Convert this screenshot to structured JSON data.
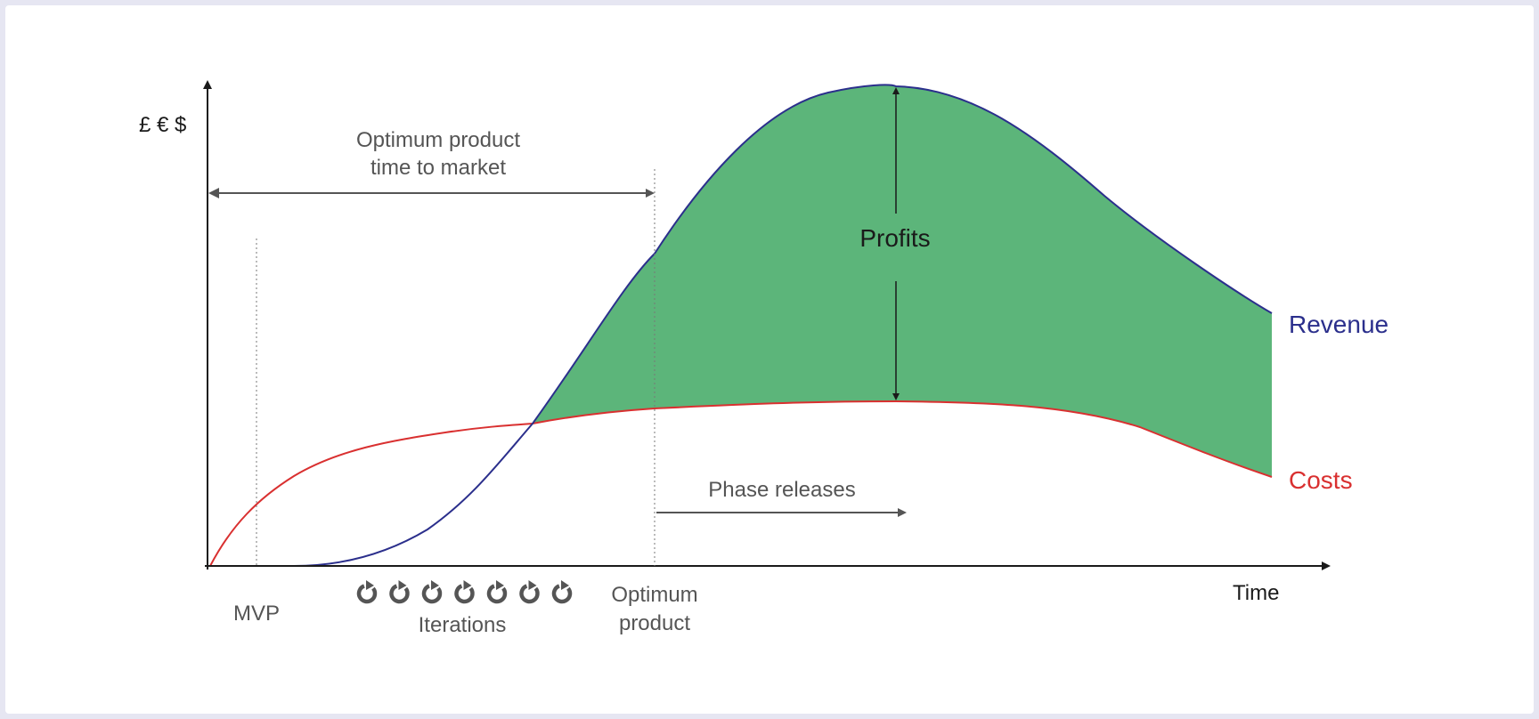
{
  "labels": {
    "y_axis": "£ € $",
    "x_axis": "Time",
    "optimum_time_line1": "Optimum product",
    "optimum_time_line2": "time to market",
    "profits": "Profits",
    "revenue": "Revenue",
    "costs": "Costs",
    "phase_releases": "Phase releases",
    "mvp": "MVP",
    "iterations": "Iterations",
    "optimum_product_line1": "Optimum",
    "optimum_product_line2": "product"
  },
  "iteration_icons": [
    "refresh-icon",
    "refresh-icon",
    "refresh-icon",
    "refresh-icon",
    "refresh-icon",
    "refresh-icon",
    "refresh-icon"
  ],
  "colors": {
    "revenue": "#2b2f8c",
    "costs": "#d93030",
    "profit_fill": "#5cb57a",
    "axis": "#1a1a1a",
    "text_gray": "#555555"
  }
}
